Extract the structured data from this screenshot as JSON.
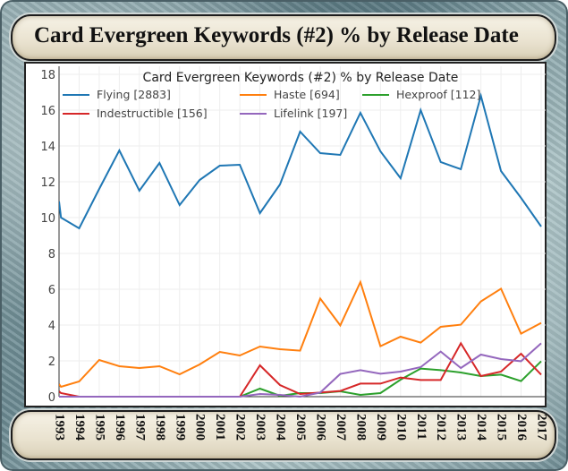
{
  "chart_data": {
    "type": "line",
    "title": "Card Evergreen Keywords (#2) % by Release Date",
    "header_title": "Card Evergreen Keywords (#2) % by Release Date",
    "xlabel": "",
    "ylabel": "",
    "xlim": [
      1993,
      2017
    ],
    "ylim": [
      0,
      18
    ],
    "yticks": [
      "0",
      "2",
      "4",
      "6",
      "8",
      "10",
      "12",
      "14",
      "16",
      "18"
    ],
    "xticks": [
      "1993",
      "1994",
      "1995",
      "1996",
      "1997",
      "1998",
      "1999",
      "2000",
      "2001",
      "2002",
      "2003",
      "2004",
      "2005",
      "2006",
      "2007",
      "2008",
      "2009",
      "2010",
      "2011",
      "2012",
      "2013",
      "2014",
      "2015",
      "2016",
      "2017"
    ],
    "grid": true,
    "legend_position": "top",
    "x": [
      1993,
      1993.1,
      1994,
      1995,
      1996,
      1997,
      1998,
      1999,
      2000,
      2001,
      2002,
      2003,
      2004,
      2005,
      2006,
      2007,
      2008,
      2009,
      2010,
      2011,
      2012,
      2013,
      2014,
      2015,
      2016,
      2017
    ],
    "series": [
      {
        "name": "Flying [2883]",
        "color": "#1f77b4",
        "values": [
          10.9,
          10.0,
          9.4,
          11.6,
          13.75,
          11.5,
          13.05,
          10.7,
          12.1,
          12.9,
          12.95,
          10.25,
          11.85,
          14.8,
          13.6,
          13.5,
          15.85,
          13.7,
          12.2,
          16.0,
          13.1,
          12.7,
          16.8,
          12.6,
          11.1,
          9.5
        ]
      },
      {
        "name": "Haste [694]",
        "color": "#ff7f0e",
        "values": [
          0.7,
          0.55,
          0.85,
          2.05,
          1.7,
          1.6,
          1.7,
          1.25,
          1.8,
          2.5,
          2.3,
          2.8,
          2.65,
          2.57,
          5.48,
          3.98,
          6.4,
          2.82,
          3.35,
          3.02,
          3.9,
          4.02,
          5.32,
          6.03,
          3.52,
          4.12
        ]
      },
      {
        "name": "Hexproof [112]",
        "color": "#2ca02c",
        "values": [
          0,
          0,
          0,
          0,
          0,
          0,
          0,
          0,
          0,
          0,
          0,
          0.45,
          0.05,
          0.2,
          0.2,
          0.3,
          0.1,
          0.2,
          0.95,
          1.57,
          1.48,
          1.35,
          1.15,
          1.23,
          0.87,
          1.98
        ]
      },
      {
        "name": "Indestructible [156]",
        "color": "#d62728",
        "values": [
          0.3,
          0.2,
          0,
          0,
          0,
          0,
          0,
          0,
          0,
          0,
          0,
          1.75,
          0.65,
          0.15,
          0.23,
          0.32,
          0.73,
          0.73,
          1.07,
          0.93,
          0.93,
          2.98,
          1.15,
          1.4,
          2.4,
          1.23
        ]
      },
      {
        "name": "Lifelink [197]",
        "color": "#9467bd",
        "values": [
          0,
          0,
          0,
          0,
          0,
          0,
          0,
          0,
          0,
          0,
          0,
          0.15,
          0.1,
          0.0,
          0.23,
          1.27,
          1.48,
          1.28,
          1.4,
          1.65,
          2.52,
          1.6,
          2.35,
          2.1,
          1.98,
          2.98
        ]
      }
    ]
  }
}
